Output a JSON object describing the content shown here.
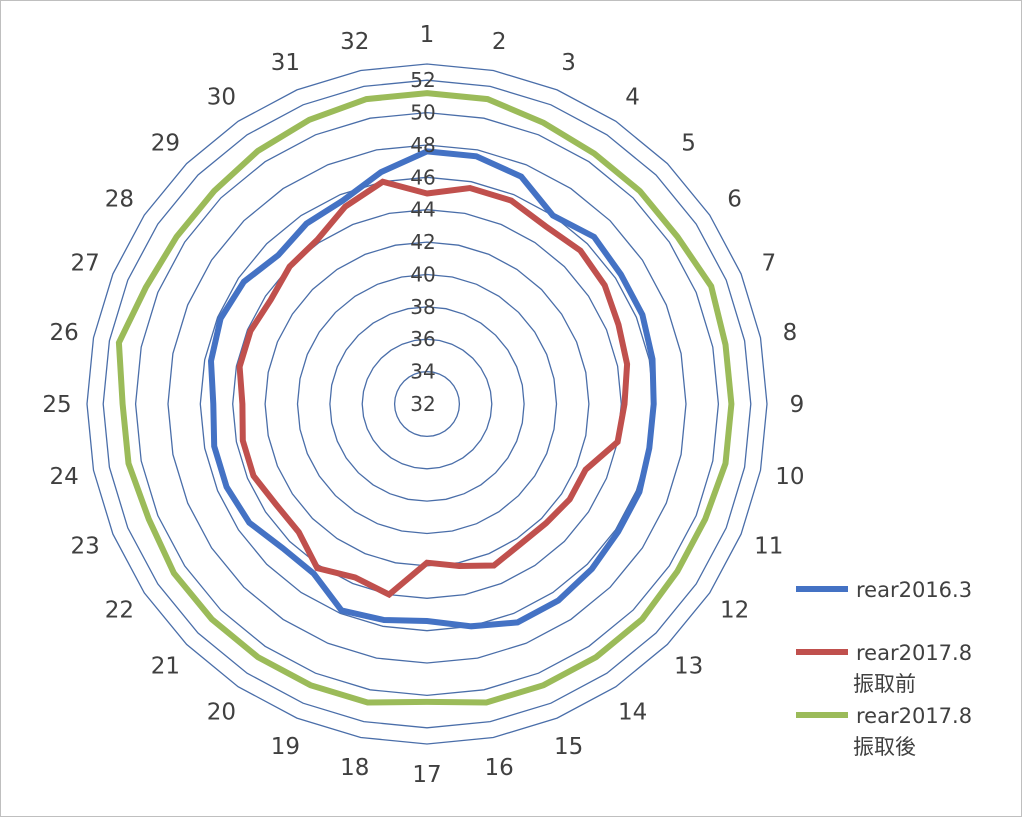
{
  "chart_data": {
    "type": "radar",
    "categories": [
      "1",
      "2",
      "3",
      "4",
      "5",
      "6",
      "7",
      "8",
      "9",
      "10",
      "11",
      "12",
      "13",
      "14",
      "15",
      "16",
      "17",
      "18",
      "19",
      "20",
      "21",
      "22",
      "23",
      "24",
      "25",
      "26",
      "27",
      "28",
      "29",
      "30",
      "31",
      "32"
    ],
    "rticks": [
      "32",
      "34",
      "36",
      "38",
      "40",
      "42",
      "44",
      "46",
      "48",
      "50",
      "52"
    ],
    "rlim": [
      32,
      53
    ],
    "grid": true,
    "legend_position": "right",
    "series": [
      {
        "name": "rear2016.3",
        "color": "#4472C4",
        "values": [
          47.6,
          47.6,
          47.2,
          46.0,
          46.6,
          46.4,
          46.4,
          46.2,
          46.0,
          46.0,
          46.2,
          46.2,
          46.4,
          46.6,
          46.6,
          46.0,
          45.4,
          45.6,
          45.8,
          44.6,
          44.6,
          45.2,
          45.4,
          45.4,
          45.2,
          45.6,
          45.8,
          45.6,
          45.0,
          45.4,
          45.6,
          46.6
        ]
      },
      {
        "name": "rear2017.8\n振取前",
        "color": "#C0504D",
        "values": [
          45.0,
          45.6,
          45.6,
          45.2,
          45.4,
          45.2,
          44.8,
          44.6,
          44.2,
          44.0,
          42.6,
          42.6,
          42.4,
          42.4,
          42.8,
          42.2,
          41.8,
          44.0,
          43.6,
          44.2,
          43.2,
          43.2,
          43.6,
          43.6,
          43.4,
          43.8,
          43.8,
          43.6,
          44.0,
          44.2,
          45.2,
          46.0
        ]
      },
      {
        "name": "rear2017.8\n振取後",
        "color": "#9BBB59",
        "values": [
          51.2,
          51.2,
          50.8,
          50.6,
          50.6,
          50.6,
          51.0,
          50.8,
          50.8,
          50.8,
          50.6,
          50.6,
          50.8,
          50.8,
          50.8,
          50.8,
          50.4,
          50.8,
          50.8,
          50.8,
          50.8,
          50.8,
          50.6,
          50.8,
          50.8,
          51.4,
          50.8,
          50.6,
          50.6,
          50.8,
          51.0,
          51.2
        ]
      }
    ]
  }
}
